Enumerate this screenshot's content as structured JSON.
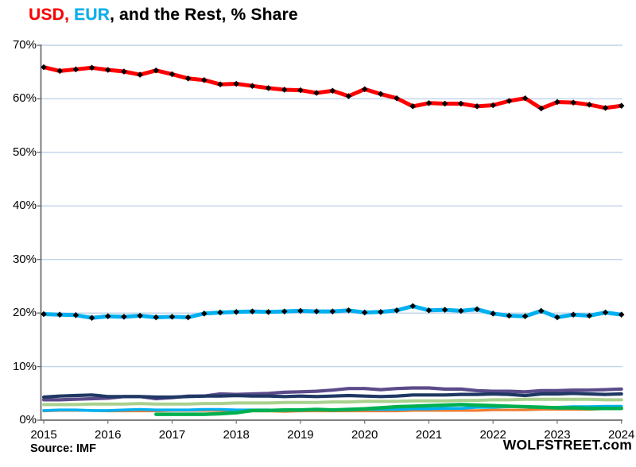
{
  "header": {
    "title_segments": [
      {
        "text": "USD,",
        "color": "#FF0000"
      },
      {
        "text": " EUR",
        "color": "#00B0F0"
      },
      {
        "text": ", and the Rest, % Share",
        "color": "#000000"
      }
    ]
  },
  "footer": {
    "source": "Source: IMF",
    "watermark": "WOLFSTREET.com"
  },
  "chart_data": {
    "type": "line",
    "title": "USD, EUR, and the Rest, % Share",
    "xlabel": "",
    "ylabel": "",
    "x_frequency": "quarterly",
    "x_start": "2015 Q1",
    "x_end": "2024 Q1",
    "x_tick_labels": [
      "2015",
      "2016",
      "2017",
      "2018",
      "2019",
      "2020",
      "2021",
      "2022",
      "2023",
      "2024"
    ],
    "ylim": [
      0,
      70
    ],
    "y_tick_step": 10,
    "y_tick_labels": [
      "0%",
      "10%",
      "20%",
      "30%",
      "40%",
      "50%",
      "60%",
      "70%"
    ],
    "grid": "horizontal",
    "legend_position": "none",
    "colors": {
      "gridline": "#BFD3EA",
      "axis": "#6F6F6F",
      "marker": "#000000"
    },
    "series": [
      {
        "name": "USD",
        "color": "#FF0000",
        "stroke_width": 5,
        "markers": true,
        "values": [
          65.9,
          65.2,
          65.5,
          65.8,
          65.4,
          65.1,
          64.5,
          65.3,
          64.6,
          63.8,
          63.5,
          62.7,
          62.8,
          62.4,
          62.0,
          61.7,
          61.6,
          61.1,
          61.5,
          60.5,
          61.8,
          60.9,
          60.1,
          58.6,
          59.2,
          59.1,
          59.1,
          58.6,
          58.8,
          59.6,
          60.1,
          58.2,
          59.4,
          59.3,
          58.9,
          58.3,
          58.7
        ]
      },
      {
        "name": "EUR",
        "color": "#00B0F0",
        "stroke_width": 5,
        "markers": true,
        "values": [
          19.8,
          19.7,
          19.6,
          19.1,
          19.4,
          19.3,
          19.5,
          19.2,
          19.3,
          19.2,
          19.9,
          20.1,
          20.2,
          20.3,
          20.2,
          20.3,
          20.4,
          20.3,
          20.3,
          20.5,
          20.1,
          20.2,
          20.5,
          21.3,
          20.5,
          20.6,
          20.4,
          20.7,
          19.9,
          19.5,
          19.4,
          20.4,
          19.2,
          19.7,
          19.5,
          20.1,
          19.7
        ]
      },
      {
        "name": "rest-dark-navy",
        "color": "#1F3864",
        "stroke_width": 4.2,
        "markers": false,
        "values": [
          4.3,
          4.5,
          4.6,
          4.7,
          4.4,
          4.4,
          4.4,
          4.3,
          4.3,
          4.4,
          4.5,
          4.5,
          4.6,
          4.5,
          4.5,
          4.4,
          4.5,
          4.4,
          4.5,
          4.6,
          4.5,
          4.4,
          4.5,
          4.7,
          4.7,
          4.7,
          4.8,
          4.8,
          4.9,
          4.8,
          4.6,
          4.9,
          4.9,
          5.0,
          4.9,
          4.8,
          4.9
        ]
      },
      {
        "name": "rest-purple",
        "color": "#5C4B8A",
        "stroke_width": 4.2,
        "markers": false,
        "values": [
          3.8,
          3.8,
          3.9,
          4.0,
          4.1,
          4.4,
          4.4,
          4.0,
          4.2,
          4.5,
          4.5,
          4.9,
          4.8,
          4.9,
          5.0,
          5.2,
          5.3,
          5.4,
          5.6,
          5.9,
          5.9,
          5.7,
          5.9,
          6.0,
          6.0,
          5.8,
          5.8,
          5.5,
          5.4,
          5.4,
          5.3,
          5.5,
          5.5,
          5.6,
          5.6,
          5.7,
          5.8
        ]
      },
      {
        "name": "rest-light-green",
        "color": "#A9D18E",
        "stroke_width": 4,
        "markers": false,
        "values": [
          2.9,
          2.9,
          2.9,
          3.0,
          3.0,
          3.0,
          3.1,
          3.0,
          3.0,
          3.0,
          3.1,
          3.1,
          3.2,
          3.2,
          3.2,
          3.3,
          3.3,
          3.3,
          3.4,
          3.4,
          3.5,
          3.5,
          3.5,
          3.6,
          3.6,
          3.6,
          3.7,
          3.7,
          3.8,
          3.8,
          3.9,
          3.9,
          3.9,
          3.9,
          3.9,
          3.8,
          3.8
        ]
      },
      {
        "name": "rest-green",
        "color": "#00B050",
        "stroke_width": 4.5,
        "markers": false,
        "values": [
          null,
          null,
          null,
          null,
          null,
          null,
          null,
          1.1,
          1.1,
          1.1,
          1.1,
          1.2,
          1.4,
          1.8,
          1.8,
          1.9,
          1.9,
          2.0,
          1.9,
          2.0,
          2.1,
          2.3,
          2.5,
          2.6,
          2.7,
          2.8,
          2.9,
          2.8,
          2.7,
          2.6,
          2.5,
          2.4,
          2.3,
          2.3,
          2.2,
          2.2,
          2.2
        ]
      },
      {
        "name": "rest-light-blue",
        "color": "#00B0F0",
        "stroke_width": 3.6,
        "markers": false,
        "values": [
          1.8,
          1.9,
          1.9,
          1.8,
          1.8,
          1.9,
          2.0,
          1.9,
          1.9,
          1.9,
          2.0,
          2.0,
          1.9,
          1.9,
          1.9,
          1.8,
          1.9,
          1.9,
          1.9,
          1.9,
          2.0,
          2.0,
          2.0,
          2.1,
          2.1,
          2.2,
          2.2,
          2.4,
          2.4,
          2.5,
          2.5,
          2.4,
          2.4,
          2.5,
          2.5,
          2.6,
          2.6
        ]
      },
      {
        "name": "rest-orange",
        "color": "#ED7D31",
        "stroke_width": 3.2,
        "markers": false,
        "values": [
          1.7,
          1.8,
          1.8,
          1.8,
          1.7,
          1.7,
          1.7,
          1.7,
          1.8,
          1.8,
          1.8,
          1.8,
          1.7,
          1.7,
          1.7,
          1.6,
          1.7,
          1.7,
          1.7,
          1.7,
          1.7,
          1.7,
          1.7,
          1.8,
          1.8,
          1.8,
          1.8,
          1.8,
          1.9,
          1.9,
          1.9,
          2.0,
          2.0,
          2.0,
          2.0,
          2.1,
          2.1
        ]
      }
    ]
  }
}
